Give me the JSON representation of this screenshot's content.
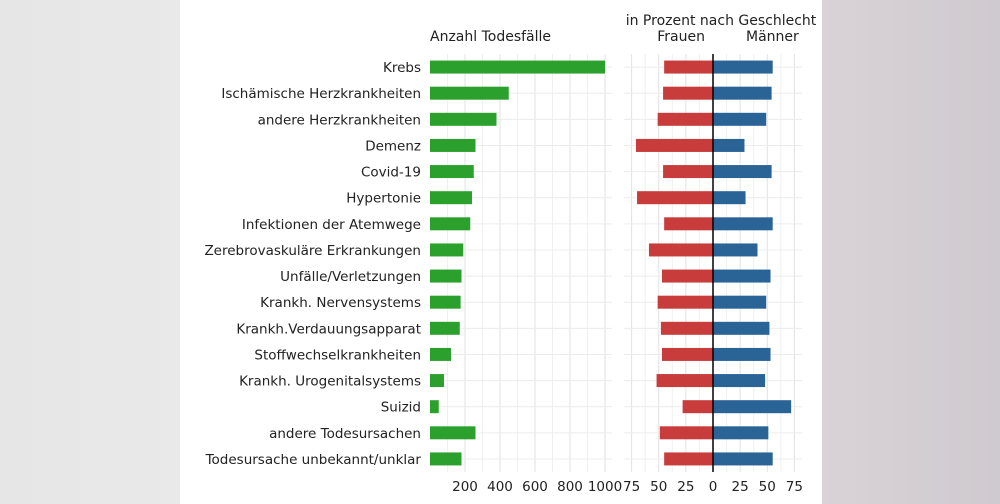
{
  "chart_data": [
    {
      "type": "bar",
      "orientation": "horizontal",
      "title": "Anzahl Todesfälle",
      "categories": [
        "Krebs",
        "Ischämische Herzkrankheiten",
        "andere Herzkrankheiten",
        "Demenz",
        "Covid-19",
        "Hypertonie",
        "Infektionen der Atemwege",
        "Zerebrovaskuläre Erkrankungen",
        "Unfälle/Verletzungen",
        "Krankh. Nervensystems",
        "Krankh.Verdauungsapparat",
        "Stoffwechselkrankheiten",
        "Krankh. Urogenitalsystems",
        "Suizid",
        "andere Todesursachen",
        "Todesursache unbekannt/unklar"
      ],
      "values": [
        1000,
        450,
        380,
        260,
        250,
        240,
        230,
        190,
        180,
        175,
        170,
        120,
        80,
        50,
        260,
        180
      ],
      "xlim": [
        0,
        1040
      ],
      "xticks": [
        "200",
        "400",
        "600",
        "800",
        "1000"
      ],
      "xtick_values": [
        200,
        400,
        600,
        800,
        1000
      ],
      "color": "#2ca02c",
      "grid": true
    },
    {
      "type": "bar",
      "orientation": "horizontal-diverging",
      "title": "in Prozent nach Geschlecht",
      "categories": [
        "Krebs",
        "Ischämische Herzkrankheiten",
        "andere Herzkrankheiten",
        "Demenz",
        "Covid-19",
        "Hypertonie",
        "Infektionen der Atemwege",
        "Zerebrovaskuläre Erkrankungen",
        "Unfälle/Verletzungen",
        "Krankh. Nervensystems",
        "Krankh.Verdauungsapparat",
        "Stoffwechselkrankheiten",
        "Krankh. Urogenitalsystems",
        "Suizid",
        "andere Todesursachen",
        "Todesursache unbekannt/unklar"
      ],
      "series": [
        {
          "name": "Frauen",
          "color": "#c83c3c",
          "values": [
            45,
            46,
            51,
            71,
            46,
            70,
            45,
            59,
            47,
            51,
            48,
            47,
            52,
            28,
            49,
            45
          ]
        },
        {
          "name": "Männer",
          "color": "#2a6496",
          "values": [
            55,
            54,
            49,
            29,
            54,
            30,
            55,
            41,
            53,
            49,
            52,
            53,
            48,
            72,
            51,
            55
          ]
        }
      ],
      "xlim": [
        -82,
        82
      ],
      "xticks": [
        "75",
        "50",
        "25",
        "0",
        "25",
        "50",
        "75"
      ],
      "xtick_values": [
        -75,
        -50,
        -25,
        0,
        25,
        50,
        75
      ],
      "grid": true
    }
  ]
}
